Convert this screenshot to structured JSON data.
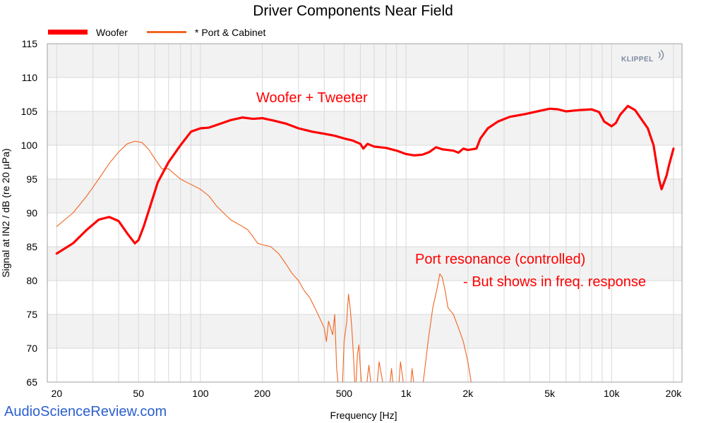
{
  "chart_data": {
    "type": "line",
    "title": "Driver Components Near Field",
    "xlabel": "Frequency [Hz]",
    "ylabel": "Signal at IN2 / dB (re 20 µPa)",
    "xscale": "log",
    "xlim": [
      18,
      22000
    ],
    "ylim": [
      65,
      115
    ],
    "xticks": [
      {
        "value": 20,
        "label": "20"
      },
      {
        "value": 50,
        "label": "50"
      },
      {
        "value": 100,
        "label": "100"
      },
      {
        "value": 200,
        "label": "200"
      },
      {
        "value": 500,
        "label": "500"
      },
      {
        "value": 1000,
        "label": "1k"
      },
      {
        "value": 2000,
        "label": "2k"
      },
      {
        "value": 5000,
        "label": "5k"
      },
      {
        "value": 10000,
        "label": "10k"
      },
      {
        "value": 20000,
        "label": "20k"
      }
    ],
    "yticks": [
      {
        "value": 65,
        "label": "65"
      },
      {
        "value": 70,
        "label": "70"
      },
      {
        "value": 75,
        "label": "75"
      },
      {
        "value": 80,
        "label": "80"
      },
      {
        "value": 85,
        "label": "85"
      },
      {
        "value": 90,
        "label": "90"
      },
      {
        "value": 95,
        "label": "95"
      },
      {
        "value": 100,
        "label": "100"
      },
      {
        "value": 105,
        "label": "105"
      },
      {
        "value": 110,
        "label": "110"
      },
      {
        "value": 115,
        "label": "115"
      }
    ],
    "grid": true,
    "legend_position": "top-left",
    "series": [
      {
        "name": "Woofer",
        "color": "#ff0000",
        "points": [
          [
            20,
            84
          ],
          [
            24,
            85.5
          ],
          [
            28,
            87.5
          ],
          [
            32,
            89
          ],
          [
            36,
            89.4
          ],
          [
            40,
            88.8
          ],
          [
            44,
            87
          ],
          [
            48,
            85.5
          ],
          [
            50,
            86
          ],
          [
            53,
            88
          ],
          [
            57,
            91
          ],
          [
            62,
            94.5
          ],
          [
            70,
            97.5
          ],
          [
            80,
            100
          ],
          [
            90,
            102
          ],
          [
            100,
            102.5
          ],
          [
            110,
            102.6
          ],
          [
            120,
            103
          ],
          [
            140,
            103.7
          ],
          [
            160,
            104.1
          ],
          [
            180,
            103.9
          ],
          [
            200,
            104
          ],
          [
            230,
            103.6
          ],
          [
            260,
            103.2
          ],
          [
            300,
            102.5
          ],
          [
            350,
            102
          ],
          [
            400,
            101.7
          ],
          [
            450,
            101.4
          ],
          [
            500,
            101
          ],
          [
            550,
            100.7
          ],
          [
            600,
            100.2
          ],
          [
            620,
            99.5
          ],
          [
            650,
            100.2
          ],
          [
            700,
            99.8
          ],
          [
            800,
            99.6
          ],
          [
            900,
            99.2
          ],
          [
            1000,
            98.7
          ],
          [
            1100,
            98.5
          ],
          [
            1200,
            98.6
          ],
          [
            1300,
            99
          ],
          [
            1400,
            99.7
          ],
          [
            1500,
            99.4
          ],
          [
            1700,
            99.2
          ],
          [
            1800,
            98.9
          ],
          [
            1900,
            99.5
          ],
          [
            2000,
            99.3
          ],
          [
            2200,
            99.5
          ],
          [
            2300,
            101
          ],
          [
            2500,
            102.5
          ],
          [
            2800,
            103.5
          ],
          [
            3200,
            104.2
          ],
          [
            3800,
            104.6
          ],
          [
            4500,
            105.1
          ],
          [
            5000,
            105.4
          ],
          [
            5500,
            105.3
          ],
          [
            6000,
            105
          ],
          [
            7000,
            105.2
          ],
          [
            8000,
            105.3
          ],
          [
            8700,
            104.9
          ],
          [
            9200,
            103.5
          ],
          [
            10000,
            102.8
          ],
          [
            10500,
            103.3
          ],
          [
            11000,
            104.5
          ],
          [
            12000,
            105.8
          ],
          [
            13000,
            105.2
          ],
          [
            14000,
            103.8
          ],
          [
            15000,
            102.5
          ],
          [
            16000,
            100
          ],
          [
            17000,
            95
          ],
          [
            17500,
            93.5
          ],
          [
            18500,
            95.5
          ],
          [
            19000,
            97
          ],
          [
            20000,
            99.5
          ]
        ]
      },
      {
        "name": "* Port & Cabinet",
        "color": "#f26522",
        "points": [
          [
            20,
            88
          ],
          [
            24,
            90
          ],
          [
            28,
            92.5
          ],
          [
            32,
            95
          ],
          [
            36,
            97.3
          ],
          [
            40,
            99
          ],
          [
            44,
            100.2
          ],
          [
            48,
            100.6
          ],
          [
            52,
            100.4
          ],
          [
            56,
            99.4
          ],
          [
            60,
            98
          ],
          [
            65,
            96.5
          ],
          [
            70,
            96.5
          ],
          [
            80,
            95
          ],
          [
            90,
            94.2
          ],
          [
            100,
            93.5
          ],
          [
            110,
            92.5
          ],
          [
            120,
            91
          ],
          [
            140,
            89
          ],
          [
            160,
            88
          ],
          [
            170,
            87.5
          ],
          [
            180,
            86.5
          ],
          [
            190,
            85.5
          ],
          [
            200,
            85.3
          ],
          [
            220,
            85
          ],
          [
            240,
            84
          ],
          [
            260,
            82.5
          ],
          [
            280,
            81
          ],
          [
            300,
            80
          ],
          [
            320,
            78.5
          ],
          [
            340,
            77.5
          ],
          [
            360,
            76
          ],
          [
            380,
            74.5
          ],
          [
            400,
            73
          ],
          [
            410,
            71
          ],
          [
            420,
            74
          ],
          [
            440,
            72
          ],
          [
            450,
            75
          ],
          [
            460,
            67
          ],
          [
            470,
            64
          ]
        ]
      },
      {
        "name": "* Port & Cabinet",
        "color": "#f26522",
        "points": [
          [
            490,
            64
          ],
          [
            500,
            71
          ],
          [
            515,
            74
          ],
          [
            525,
            78
          ],
          [
            535,
            76
          ],
          [
            545,
            73
          ],
          [
            555,
            69
          ],
          [
            565,
            64
          ]
        ]
      },
      {
        "name": "* Port & Cabinet",
        "color": "#f26522",
        "points": [
          [
            570,
            64
          ],
          [
            580,
            69
          ],
          [
            590,
            70.5
          ],
          [
            600,
            67
          ],
          [
            610,
            64
          ]
        ]
      },
      {
        "name": "* Port & Cabinet",
        "color": "#f26522",
        "points": [
          [
            640,
            64
          ],
          [
            660,
            67.5
          ],
          [
            680,
            64
          ]
        ]
      },
      {
        "name": "* Port & Cabinet",
        "color": "#f26522",
        "points": [
          [
            720,
            64
          ],
          [
            740,
            68
          ],
          [
            760,
            66
          ],
          [
            780,
            64
          ]
        ]
      },
      {
        "name": "* Port & Cabinet",
        "color": "#f26522",
        "points": [
          [
            830,
            64
          ],
          [
            850,
            67
          ],
          [
            870,
            64
          ]
        ]
      },
      {
        "name": "* Port & Cabinet",
        "color": "#f26522",
        "points": [
          [
            920,
            64
          ],
          [
            940,
            68
          ],
          [
            960,
            66
          ],
          [
            980,
            64
          ]
        ]
      },
      {
        "name": "* Port & Cabinet",
        "color": "#f26522",
        "points": [
          [
            1050,
            64
          ],
          [
            1070,
            67
          ],
          [
            1100,
            64
          ]
        ]
      },
      {
        "name": "* Port & Cabinet",
        "color": "#f26522",
        "points": [
          [
            1200,
            64
          ],
          [
            1230,
            66.5
          ],
          [
            1280,
            71
          ],
          [
            1350,
            76
          ],
          [
            1420,
            79
          ],
          [
            1460,
            81
          ],
          [
            1500,
            80.5
          ],
          [
            1550,
            78.5
          ],
          [
            1600,
            76
          ],
          [
            1650,
            75.5
          ],
          [
            1700,
            75
          ],
          [
            1800,
            73
          ],
          [
            1900,
            71
          ],
          [
            2000,
            68
          ],
          [
            2100,
            64
          ]
        ]
      }
    ],
    "annotations": [
      "Woofer + Tweeter",
      "Port resonance (controlled)",
      "- But shows in freq. response"
    ]
  },
  "logo": "KLIPPEL",
  "watermark": "AudioScienceReview.com"
}
